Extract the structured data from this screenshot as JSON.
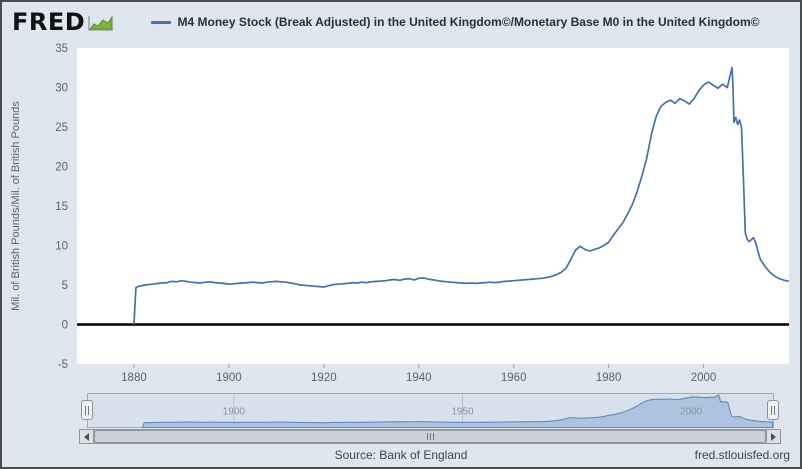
{
  "header": {
    "logo_text": "FRED",
    "legend_label": "M4 Money Stock (Break Adjusted) in the United Kingdom©/Monetary Base M0 in the United Kingdom©"
  },
  "colors": {
    "accent_line": "#4572a7",
    "background": "#dfe6ed",
    "plot_background": "#ffffff",
    "zero_line": "#000000",
    "logo_green": "#7fb241"
  },
  "chart_data": {
    "type": "line",
    "title": "M4 Money Stock (Break Adjusted) in the United Kingdom©/Monetary Base M0 in the United Kingdom©",
    "xlabel": "",
    "ylabel": "Mil. of British Pounds/Mil. of British Pounds",
    "xlim": [
      1868,
      2018
    ],
    "ylim": [
      -5,
      35
    ],
    "x_ticks": [
      1880,
      1900,
      1920,
      1940,
      1960,
      1980,
      2000
    ],
    "y_ticks": [
      35,
      30,
      25,
      20,
      15,
      10,
      5,
      0,
      -5
    ],
    "grid": false,
    "legend_position": "top",
    "zero_line": 0,
    "series": [
      {
        "name": "M4 Money Stock (Break Adjusted) in the United Kingdom©/Monetary Base M0 in the United Kingdom©",
        "points": [
          [
            1880,
            0.1
          ],
          [
            1880.4,
            4.65
          ],
          [
            1881,
            4.85
          ],
          [
            1882,
            4.95
          ],
          [
            1883,
            5.05
          ],
          [
            1884,
            5.1
          ],
          [
            1885,
            5.2
          ],
          [
            1886,
            5.25
          ],
          [
            1887,
            5.3
          ],
          [
            1888,
            5.45
          ],
          [
            1889,
            5.4
          ],
          [
            1890,
            5.55
          ],
          [
            1891,
            5.45
          ],
          [
            1892,
            5.35
          ],
          [
            1893,
            5.3
          ],
          [
            1894,
            5.25
          ],
          [
            1895,
            5.35
          ],
          [
            1896,
            5.4
          ],
          [
            1897,
            5.3
          ],
          [
            1898,
            5.25
          ],
          [
            1899,
            5.2
          ],
          [
            1900,
            5.1
          ],
          [
            1901,
            5.15
          ],
          [
            1902,
            5.2
          ],
          [
            1903,
            5.25
          ],
          [
            1904,
            5.3
          ],
          [
            1905,
            5.35
          ],
          [
            1906,
            5.3
          ],
          [
            1907,
            5.25
          ],
          [
            1908,
            5.35
          ],
          [
            1909,
            5.4
          ],
          [
            1910,
            5.45
          ],
          [
            1911,
            5.4
          ],
          [
            1912,
            5.35
          ],
          [
            1913,
            5.25
          ],
          [
            1914,
            5.15
          ],
          [
            1915,
            5.0
          ],
          [
            1916,
            4.95
          ],
          [
            1917,
            4.9
          ],
          [
            1918,
            4.85
          ],
          [
            1919,
            4.8
          ],
          [
            1920,
            4.75
          ],
          [
            1921,
            4.9
          ],
          [
            1922,
            5.05
          ],
          [
            1923,
            5.1
          ],
          [
            1924,
            5.15
          ],
          [
            1925,
            5.2
          ],
          [
            1926,
            5.3
          ],
          [
            1927,
            5.25
          ],
          [
            1928,
            5.35
          ],
          [
            1929,
            5.3
          ],
          [
            1930,
            5.4
          ],
          [
            1931,
            5.45
          ],
          [
            1932,
            5.5
          ],
          [
            1933,
            5.55
          ],
          [
            1934,
            5.65
          ],
          [
            1935,
            5.7
          ],
          [
            1936,
            5.6
          ],
          [
            1937,
            5.75
          ],
          [
            1938,
            5.8
          ],
          [
            1939,
            5.65
          ],
          [
            1940,
            5.85
          ],
          [
            1941,
            5.9
          ],
          [
            1942,
            5.75
          ],
          [
            1943,
            5.65
          ],
          [
            1944,
            5.55
          ],
          [
            1945,
            5.45
          ],
          [
            1946,
            5.4
          ],
          [
            1947,
            5.35
          ],
          [
            1948,
            5.3
          ],
          [
            1949,
            5.25
          ],
          [
            1950,
            5.2
          ],
          [
            1951,
            5.25
          ],
          [
            1952,
            5.2
          ],
          [
            1953,
            5.25
          ],
          [
            1954,
            5.3
          ],
          [
            1955,
            5.35
          ],
          [
            1956,
            5.3
          ],
          [
            1957,
            5.35
          ],
          [
            1958,
            5.45
          ],
          [
            1959,
            5.5
          ],
          [
            1960,
            5.55
          ],
          [
            1961,
            5.6
          ],
          [
            1962,
            5.65
          ],
          [
            1963,
            5.7
          ],
          [
            1964,
            5.75
          ],
          [
            1965,
            5.8
          ],
          [
            1966,
            5.85
          ],
          [
            1967,
            5.95
          ],
          [
            1968,
            6.1
          ],
          [
            1969,
            6.3
          ],
          [
            1970,
            6.6
          ],
          [
            1971,
            7.1
          ],
          [
            1972,
            8.2
          ],
          [
            1973,
            9.4
          ],
          [
            1974,
            9.9
          ],
          [
            1975,
            9.5
          ],
          [
            1976,
            9.3
          ],
          [
            1977,
            9.5
          ],
          [
            1978,
            9.7
          ],
          [
            1979,
            10.0
          ],
          [
            1980,
            10.4
          ],
          [
            1981,
            11.3
          ],
          [
            1982,
            12.1
          ],
          [
            1983,
            12.9
          ],
          [
            1984,
            14.0
          ],
          [
            1985,
            15.2
          ],
          [
            1986,
            16.8
          ],
          [
            1987,
            18.8
          ],
          [
            1988,
            21.0
          ],
          [
            1989,
            24.0
          ],
          [
            1990,
            26.3
          ],
          [
            1991,
            27.6
          ],
          [
            1992,
            28.1
          ],
          [
            1993,
            28.4
          ],
          [
            1994,
            28.0
          ],
          [
            1995,
            28.6
          ],
          [
            1996,
            28.3
          ],
          [
            1997,
            27.9
          ],
          [
            1998,
            28.6
          ],
          [
            1999,
            29.6
          ],
          [
            2000,
            30.3
          ],
          [
            2001,
            30.7
          ],
          [
            2002,
            30.3
          ],
          [
            2003,
            29.9
          ],
          [
            2004,
            30.4
          ],
          [
            2005,
            30.0
          ],
          [
            2005.5,
            31.3
          ],
          [
            2006,
            32.5
          ],
          [
            2006.2,
            30.2
          ],
          [
            2006.4,
            25.6
          ],
          [
            2006.8,
            26.2
          ],
          [
            2007.2,
            25.3
          ],
          [
            2007.6,
            25.9
          ],
          [
            2008,
            24.9
          ],
          [
            2008.4,
            18.5
          ],
          [
            2008.8,
            11.6
          ],
          [
            2009.2,
            10.8
          ],
          [
            2009.6,
            10.5
          ],
          [
            2010,
            10.7
          ],
          [
            2010.5,
            11.0
          ],
          [
            2011,
            10.3
          ],
          [
            2011.5,
            9.2
          ],
          [
            2012,
            8.2
          ],
          [
            2013,
            7.3
          ],
          [
            2014,
            6.6
          ],
          [
            2015,
            6.1
          ],
          [
            2016,
            5.8
          ],
          [
            2017,
            5.6
          ],
          [
            2017.8,
            5.5
          ]
        ]
      }
    ]
  },
  "navigator": {
    "labels": [
      "1900",
      "1950",
      "2000"
    ]
  },
  "footer": {
    "source": "Source: Bank of England",
    "site": "fred.stlouisfed.org"
  }
}
